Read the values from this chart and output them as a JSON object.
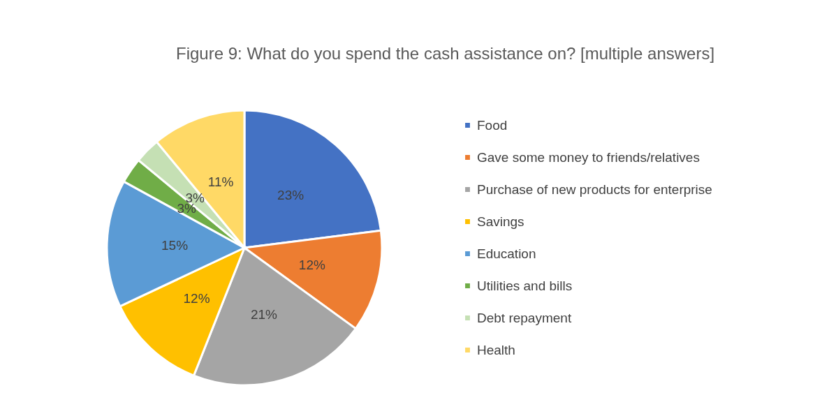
{
  "chart_data": {
    "type": "pie",
    "title": "Figure 9: What do you spend the cash assistance on? [multiple answers]",
    "categories": [
      "Food",
      "Gave some money to friends/relatives",
      "Purchase of new products for enterprise",
      "Savings",
      "Education",
      "Utilities and bills",
      "Debt repayment",
      "Health"
    ],
    "values": [
      23,
      12,
      21,
      12,
      15,
      3,
      3,
      11
    ],
    "value_labels": [
      "23%",
      "12%",
      "21%",
      "12%",
      "15%",
      "3%",
      "3%",
      "11%"
    ],
    "colors": [
      "#4472c4",
      "#ed7d31",
      "#a5a5a5",
      "#ffc000",
      "#5b9bd5",
      "#70ad47",
      "#c5e0b4",
      "#ffd966"
    ],
    "legend": "right"
  }
}
